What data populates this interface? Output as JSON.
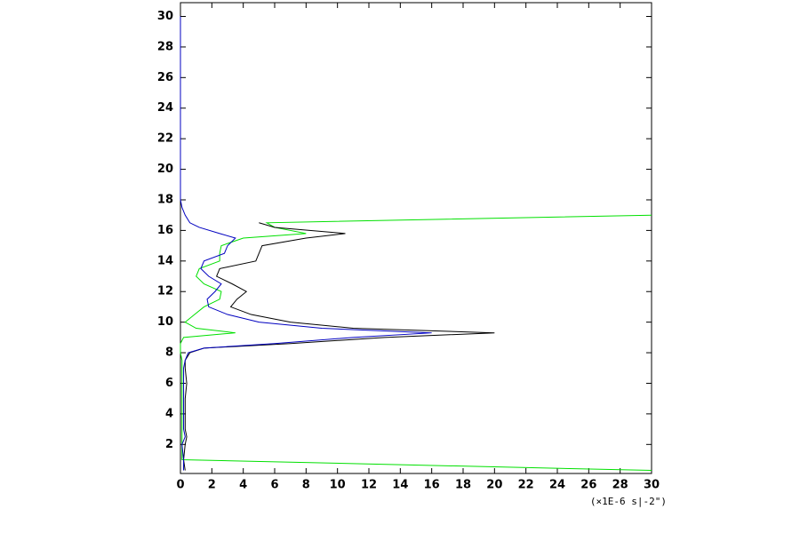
{
  "chart_data": {
    "type": "line",
    "x_label": "(×1E-6 s|-2\")",
    "y": [
      0.3,
      1,
      2,
      2.5,
      3,
      4,
      5,
      6,
      7,
      7.5,
      8,
      8.3,
      8.6,
      9,
      9.3,
      9.6,
      10,
      10.5,
      11,
      11.5,
      12,
      12.5,
      13,
      13.5,
      14,
      14.5,
      15,
      15.5,
      15.8,
      16.2,
      16.5,
      17,
      17.5,
      18,
      20,
      25,
      30
    ],
    "series": [
      {
        "color": "#00e000",
        "values": [
          30,
          0.1,
          0.1,
          0.1,
          0.1,
          0.1,
          0.1,
          0.1,
          0.1,
          0.1,
          0,
          0,
          0,
          0.2,
          3.5,
          1,
          0.3,
          0.9,
          1.5,
          2.5,
          2.6,
          1.5,
          1,
          1.2,
          2.5,
          2.5,
          2.6,
          4,
          8,
          6,
          5.5,
          30,
          null,
          null,
          null,
          null,
          null
        ]
      },
      {
        "color": "#000000",
        "values": [
          0.3,
          0.2,
          0.3,
          0.4,
          0.3,
          0.3,
          0.3,
          0.4,
          0.3,
          0.3,
          0.6,
          1.5,
          7,
          13,
          20,
          11,
          7,
          4.5,
          3.2,
          3.6,
          4.2,
          3.3,
          2.3,
          2.5,
          4.8,
          5,
          5.2,
          8,
          10.5,
          6,
          5,
          null,
          null,
          null,
          null,
          null,
          null
        ]
      },
      {
        "color": "#0000c0",
        "values": [
          0.2,
          0.2,
          0.1,
          0.3,
          0.2,
          0.2,
          0.2,
          0.2,
          0.2,
          0.3,
          0.5,
          1.5,
          6,
          11,
          16,
          9,
          5,
          3,
          1.8,
          1.7,
          2.2,
          2.6,
          1.8,
          1.3,
          1.5,
          2.8,
          3,
          3.5,
          2.5,
          1.2,
          0.6,
          0.3,
          0.1,
          0,
          0,
          0,
          0
        ]
      }
    ],
    "xlim": [
      0,
      30
    ],
    "ylim": [
      0.1,
      30.9
    ],
    "xticks": [
      0,
      2,
      4,
      6,
      8,
      10,
      12,
      14,
      16,
      18,
      20,
      22,
      24,
      26,
      28,
      30
    ],
    "yticks": [
      2,
      4,
      6,
      8,
      10,
      12,
      14,
      16,
      18,
      20,
      22,
      24,
      26,
      28,
      30
    ]
  }
}
